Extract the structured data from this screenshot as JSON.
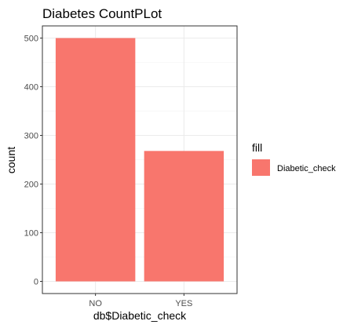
{
  "chart_data": {
    "type": "bar",
    "title": "Diabetes CountPLot",
    "xlabel": "db$Diabetic_check",
    "ylabel": "count",
    "categories": [
      "NO",
      "YES"
    ],
    "values": [
      500,
      268
    ],
    "ylim": [
      -25,
      525
    ],
    "y_ticks": [
      0,
      100,
      200,
      300,
      400,
      500
    ],
    "grid": true,
    "bar_color": "#F8766D",
    "legend": {
      "title": "fill",
      "entries": [
        "Diabetic_check"
      ],
      "placement": "right"
    }
  }
}
